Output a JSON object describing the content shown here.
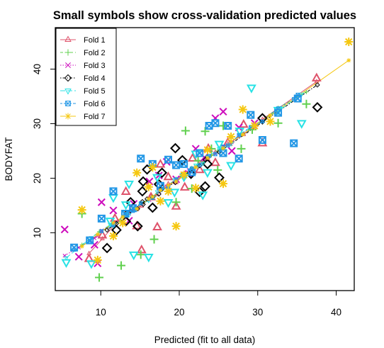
{
  "chart_data": {
    "type": "scatter",
    "title": "Small symbols show cross-validation predicted values",
    "xlabel": "Predicted (fit to all data)",
    "ylabel": "BODYFAT",
    "xlim": [
      4.2,
      42.3
    ],
    "ylim": [
      -0.6,
      47.6
    ],
    "xticks": [
      10,
      20,
      30,
      40
    ],
    "yticks": [
      10,
      20,
      30,
      40
    ],
    "legend_position": "top-left",
    "series": [
      {
        "name": "Fold 1",
        "color": "#DF536B",
        "marker": "triangle",
        "line": "solid",
        "points": [
          [
            8.5,
            5.2
          ],
          [
            10.2,
            9.5
          ],
          [
            11.8,
            12.6
          ],
          [
            13.2,
            17.5
          ],
          [
            14.6,
            11.2
          ],
          [
            15.2,
            6.8
          ],
          [
            16.4,
            16.5
          ],
          [
            17.2,
            11.0
          ],
          [
            17.6,
            22.5
          ],
          [
            18.6,
            20.2
          ],
          [
            19.6,
            14.8
          ],
          [
            20.7,
            18.3
          ],
          [
            21.7,
            23.6
          ],
          [
            22.6,
            21.5
          ],
          [
            23.7,
            25.4
          ],
          [
            24.6,
            22.8
          ],
          [
            26.2,
            26.5
          ],
          [
            28.2,
            29.8
          ],
          [
            30.6,
            26.4
          ],
          [
            37.5,
            38.3
          ]
        ],
        "cv": [
          [
            8.5,
            6.2
          ],
          [
            10.2,
            8.9
          ],
          [
            11.8,
            11.5
          ],
          [
            13.2,
            13.8
          ],
          [
            14.6,
            14.3
          ],
          [
            15.2,
            14.9
          ],
          [
            16.4,
            16.7
          ],
          [
            17.2,
            17.0
          ],
          [
            17.6,
            17.9
          ],
          [
            18.6,
            19.0
          ],
          [
            19.6,
            19.2
          ],
          [
            20.7,
            20.9
          ],
          [
            21.7,
            21.6
          ],
          [
            22.6,
            22.9
          ],
          [
            23.7,
            23.4
          ],
          [
            24.6,
            24.8
          ],
          [
            26.2,
            26.3
          ],
          [
            28.2,
            28.0
          ],
          [
            30.6,
            30.8
          ],
          [
            37.5,
            37.7
          ]
        ]
      },
      {
        "name": "Fold 2",
        "color": "#61D04F",
        "marker": "plus",
        "line": "dashed",
        "points": [
          [
            7.6,
            13.5
          ],
          [
            9.8,
            1.8
          ],
          [
            12.6,
            4.0
          ],
          [
            15.1,
            6.0
          ],
          [
            16.8,
            8.8
          ],
          [
            19.6,
            15.6
          ],
          [
            20.8,
            28.7
          ],
          [
            21.6,
            18.1
          ],
          [
            22.4,
            23.2
          ],
          [
            23.3,
            28.6
          ],
          [
            24.1,
            25.4
          ],
          [
            24.9,
            21.5
          ],
          [
            25.6,
            29.6
          ],
          [
            27.9,
            25.4
          ],
          [
            29.3,
            28.9
          ],
          [
            32.6,
            30.1
          ],
          [
            36.2,
            33.6
          ]
        ],
        "cv": [
          [
            7.6,
            7.8
          ],
          [
            9.8,
            10.2
          ],
          [
            12.6,
            12.1
          ],
          [
            15.1,
            15.5
          ],
          [
            16.8,
            16.6
          ],
          [
            19.6,
            19.9
          ],
          [
            20.8,
            20.5
          ],
          [
            21.6,
            21.9
          ],
          [
            22.4,
            22.1
          ],
          [
            23.3,
            23.6
          ],
          [
            24.1,
            24.2
          ],
          [
            24.9,
            25.0
          ],
          [
            25.6,
            25.4
          ],
          [
            27.9,
            28.1
          ],
          [
            29.3,
            29.0
          ],
          [
            32.6,
            32.9
          ],
          [
            36.2,
            35.8
          ]
        ]
      },
      {
        "name": "Fold 3",
        "color": "#CD0BBC",
        "marker": "x",
        "line": "dotted",
        "points": [
          [
            5.4,
            10.6
          ],
          [
            7.2,
            5.6
          ],
          [
            9.2,
            7.8
          ],
          [
            9.6,
            4.4
          ],
          [
            10.1,
            15.6
          ],
          [
            11.6,
            14.1
          ],
          [
            13.6,
            12.2
          ],
          [
            14.2,
            15.3
          ],
          [
            16.2,
            19.4
          ],
          [
            17.4,
            20.5
          ],
          [
            18.4,
            23.0
          ],
          [
            19.6,
            19.8
          ],
          [
            21.2,
            20.8
          ],
          [
            22.1,
            25.4
          ],
          [
            23.2,
            23.8
          ],
          [
            24.6,
            31.0
          ],
          [
            25.6,
            32.2
          ],
          [
            26.7,
            25.0
          ],
          [
            27.6,
            29.3
          ],
          [
            29.6,
            30.1
          ]
        ],
        "cv": [
          [
            5.4,
            5.8
          ],
          [
            7.2,
            7.3
          ],
          [
            9.2,
            9.0
          ],
          [
            9.6,
            9.4
          ],
          [
            10.1,
            10.4
          ],
          [
            11.6,
            11.8
          ],
          [
            13.6,
            13.5
          ],
          [
            14.2,
            14.4
          ],
          [
            16.2,
            16.0
          ],
          [
            17.4,
            17.6
          ],
          [
            18.4,
            18.5
          ],
          [
            19.6,
            19.4
          ],
          [
            21.2,
            21.5
          ],
          [
            22.1,
            22.0
          ],
          [
            23.2,
            23.4
          ],
          [
            24.6,
            24.5
          ],
          [
            25.6,
            25.9
          ],
          [
            26.7,
            26.6
          ],
          [
            27.6,
            27.8
          ],
          [
            29.6,
            29.4
          ]
        ]
      },
      {
        "name": "Fold 4",
        "color": "#000000",
        "marker": "diamond",
        "line": "dotdash",
        "points": [
          [
            10.8,
            7.2
          ],
          [
            12.0,
            10.5
          ],
          [
            13.2,
            12.1
          ],
          [
            13.8,
            15.6
          ],
          [
            14.7,
            11.2
          ],
          [
            15.3,
            17.6
          ],
          [
            15.4,
            19.4
          ],
          [
            15.9,
            21.6
          ],
          [
            16.6,
            14.6
          ],
          [
            17.4,
            18.9
          ],
          [
            17.8,
            21.0
          ],
          [
            19.5,
            25.5
          ],
          [
            20.4,
            23.3
          ],
          [
            21.5,
            20.8
          ],
          [
            22.6,
            17.5
          ],
          [
            23.3,
            18.5
          ],
          [
            23.6,
            22.6
          ],
          [
            25.1,
            20.1
          ],
          [
            30.6,
            31.0
          ],
          [
            37.6,
            33.0
          ]
        ],
        "cv": [
          [
            10.8,
            10.5
          ],
          [
            12.0,
            11.7
          ],
          [
            13.2,
            13.6
          ],
          [
            13.8,
            14.0
          ],
          [
            14.7,
            14.4
          ],
          [
            15.3,
            15.7
          ],
          [
            15.4,
            15.2
          ],
          [
            15.9,
            16.2
          ],
          [
            16.6,
            16.5
          ],
          [
            17.4,
            17.1
          ],
          [
            17.8,
            18.0
          ],
          [
            19.5,
            19.2
          ],
          [
            20.4,
            20.7
          ],
          [
            21.5,
            21.4
          ],
          [
            22.6,
            22.3
          ],
          [
            23.3,
            23.4
          ],
          [
            23.6,
            23.9
          ],
          [
            25.1,
            24.8
          ],
          [
            30.6,
            30.3
          ],
          [
            37.6,
            37.1
          ]
        ]
      },
      {
        "name": "Fold 5",
        "color": "#28E2E5",
        "marker": "triangle-down",
        "line": "longdash",
        "points": [
          [
            5.6,
            4.6
          ],
          [
            8.8,
            4.4
          ],
          [
            11.2,
            12.2
          ],
          [
            11.6,
            16.5
          ],
          [
            13.2,
            15.2
          ],
          [
            13.6,
            19.0
          ],
          [
            14.2,
            6.0
          ],
          [
            16.1,
            5.6
          ],
          [
            17.2,
            20.2
          ],
          [
            18.6,
            15.6
          ],
          [
            19.4,
            17.5
          ],
          [
            20.6,
            20.3
          ],
          [
            22.1,
            24.5
          ],
          [
            23.0,
            17.0
          ],
          [
            23.6,
            21.1
          ],
          [
            25.1,
            26.3
          ],
          [
            26.6,
            22.4
          ],
          [
            27.7,
            28.7
          ],
          [
            29.2,
            36.6
          ],
          [
            32.6,
            32.5
          ],
          [
            35.6,
            30.1
          ]
        ],
        "cv": [
          [
            5.6,
            5.4
          ],
          [
            8.8,
            9.1
          ],
          [
            11.2,
            11.5
          ],
          [
            11.6,
            11.3
          ],
          [
            13.2,
            13.5
          ],
          [
            13.6,
            13.3
          ],
          [
            14.2,
            14.6
          ],
          [
            16.1,
            15.9
          ],
          [
            17.2,
            17.5
          ],
          [
            18.6,
            18.3
          ],
          [
            19.4,
            19.7
          ],
          [
            20.6,
            20.4
          ],
          [
            22.1,
            22.4
          ],
          [
            23.0,
            22.7
          ],
          [
            23.6,
            23.9
          ],
          [
            25.1,
            25.4
          ],
          [
            26.6,
            26.3
          ],
          [
            27.7,
            28.0
          ],
          [
            29.2,
            29.5
          ],
          [
            32.6,
            32.3
          ],
          [
            35.6,
            35.4
          ]
        ]
      },
      {
        "name": "Fold 6",
        "color": "#2297E6",
        "marker": "square-x",
        "line": "twodash",
        "points": [
          [
            6.6,
            7.3
          ],
          [
            8.6,
            8.6
          ],
          [
            10.1,
            12.6
          ],
          [
            11.6,
            17.6
          ],
          [
            13.1,
            13.5
          ],
          [
            14.1,
            14.5
          ],
          [
            15.1,
            23.6
          ],
          [
            16.6,
            22.6
          ],
          [
            17.6,
            18.6
          ],
          [
            18.6,
            23.4
          ],
          [
            19.6,
            22.4
          ],
          [
            20.6,
            22.6
          ],
          [
            21.6,
            21.1
          ],
          [
            22.6,
            24.6
          ],
          [
            23.8,
            29.6
          ],
          [
            24.6,
            30.1
          ],
          [
            25.6,
            24.6
          ],
          [
            26.2,
            29.6
          ],
          [
            27.6,
            23.6
          ],
          [
            29.1,
            31.6
          ],
          [
            30.6,
            27.0
          ],
          [
            32.6,
            32.0
          ],
          [
            34.6,
            26.4
          ],
          [
            35.1,
            34.6
          ]
        ],
        "cv": [
          [
            6.6,
            6.9
          ],
          [
            8.6,
            8.4
          ],
          [
            10.1,
            10.3
          ],
          [
            11.6,
            11.4
          ],
          [
            13.1,
            13.3
          ],
          [
            14.1,
            14.0
          ],
          [
            15.1,
            15.4
          ],
          [
            16.6,
            16.4
          ],
          [
            17.6,
            17.8
          ],
          [
            18.6,
            18.4
          ],
          [
            19.6,
            19.8
          ],
          [
            20.6,
            20.5
          ],
          [
            21.6,
            21.8
          ],
          [
            22.6,
            22.4
          ],
          [
            23.8,
            24.1
          ],
          [
            24.6,
            24.4
          ],
          [
            25.6,
            25.8
          ],
          [
            26.2,
            26.0
          ],
          [
            27.6,
            27.9
          ],
          [
            29.1,
            29.3
          ],
          [
            30.6,
            30.4
          ],
          [
            32.6,
            32.8
          ],
          [
            34.6,
            34.5
          ],
          [
            35.1,
            35.3
          ]
        ]
      },
      {
        "name": "Fold 7",
        "color": "#F5C710",
        "marker": "star",
        "line": "solid",
        "points": [
          [
            7.6,
            14.2
          ],
          [
            9.6,
            5.0
          ],
          [
            11.6,
            9.4
          ],
          [
            12.8,
            11.8
          ],
          [
            14.6,
            21.0
          ],
          [
            16.1,
            18.4
          ],
          [
            16.6,
            22.0
          ],
          [
            17.6,
            15.8
          ],
          [
            18.6,
            17.6
          ],
          [
            19.6,
            11.2
          ],
          [
            20.6,
            20.6
          ],
          [
            22.1,
            18.2
          ],
          [
            23.6,
            25.2
          ],
          [
            25.6,
            19.0
          ],
          [
            26.6,
            27.6
          ],
          [
            28.1,
            32.6
          ],
          [
            29.6,
            29.6
          ],
          [
            31.6,
            30.4
          ],
          [
            41.6,
            45.0
          ]
        ],
        "cv": [
          [
            7.6,
            7.5
          ],
          [
            9.6,
            9.7
          ],
          [
            11.6,
            11.8
          ],
          [
            12.8,
            12.9
          ],
          [
            14.6,
            14.4
          ],
          [
            16.1,
            16.2
          ],
          [
            16.6,
            16.6
          ],
          [
            17.6,
            17.8
          ],
          [
            18.6,
            18.7
          ],
          [
            19.6,
            19.4
          ],
          [
            20.6,
            20.8
          ],
          [
            22.1,
            22.0
          ],
          [
            23.6,
            23.7
          ],
          [
            25.6,
            25.5
          ],
          [
            26.6,
            26.7
          ],
          [
            28.1,
            28.0
          ],
          [
            29.6,
            29.7
          ],
          [
            31.6,
            31.5
          ],
          [
            41.6,
            41.6
          ]
        ]
      }
    ]
  }
}
